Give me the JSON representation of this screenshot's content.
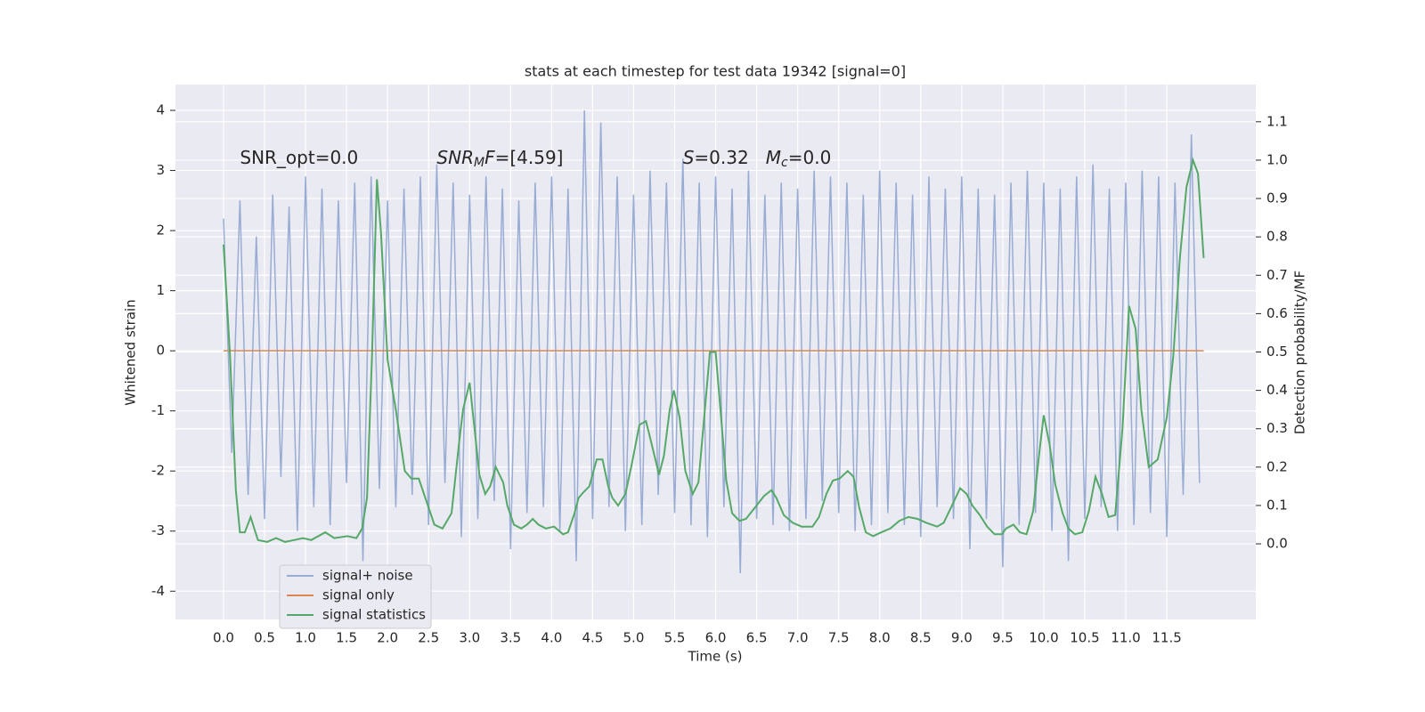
{
  "chart_data": {
    "type": "line",
    "title": "stats at each timestep for test data 19342 [signal=0]",
    "xlabel": "Time (s)",
    "ylabel": "Whitened strain",
    "y2label": "Detection probability/MF",
    "annotations": [
      {
        "parts": [
          {
            "text": "SNR_opt=0.0",
            "italic": false
          }
        ]
      },
      {
        "parts": [
          {
            "text": "SNR",
            "italic": true
          },
          {
            "text": "M",
            "italic": true,
            "sub": true
          },
          {
            "text": "F",
            "italic": true
          },
          {
            "text": "=[4.59]",
            "italic": false
          }
        ]
      },
      {
        "parts": [
          {
            "text": "S",
            "italic": true
          },
          {
            "text": "=0.32   ",
            "italic": false
          },
          {
            "text": "M",
            "italic": true
          },
          {
            "text": "c",
            "italic": true,
            "sub": true
          },
          {
            "text": "=0.0",
            "italic": false
          }
        ]
      }
    ],
    "annotation_x": [
      0.2,
      2.6,
      5.6
    ],
    "annotation_y": [
      3.2,
      3.2,
      3.2
    ],
    "x": [
      0.0,
      0.1,
      0.2,
      0.3,
      0.4,
      0.5,
      0.6,
      0.7,
      0.8,
      0.9,
      1.0,
      1.1,
      1.2,
      1.3,
      1.4,
      1.5,
      1.6,
      1.7,
      1.8,
      1.9,
      2.0,
      2.1,
      2.2,
      2.3,
      2.4,
      2.5,
      2.6,
      2.7,
      2.8,
      2.9,
      3.0,
      3.1,
      3.2,
      3.3,
      3.4,
      3.5,
      3.6,
      3.7,
      3.8,
      3.9,
      4.0,
      4.1,
      4.2,
      4.3,
      4.4,
      4.5,
      4.6,
      4.7,
      4.8,
      4.9,
      5.0,
      5.1,
      5.2,
      5.3,
      5.4,
      5.5,
      5.6,
      5.7,
      5.8,
      5.9,
      6.0,
      6.1,
      6.2,
      6.3,
      6.4,
      6.5,
      6.6,
      6.7,
      6.8,
      6.9,
      7.0,
      7.1,
      7.2,
      7.3,
      7.4,
      7.5,
      7.6,
      7.7,
      7.8,
      7.9,
      8.0,
      8.1,
      8.2,
      8.3,
      8.4,
      8.5,
      8.6,
      8.7,
      8.8,
      8.9,
      9.0,
      9.1,
      9.2,
      9.3,
      9.4,
      9.5,
      9.6,
      9.7,
      9.8,
      9.9,
      10.0,
      10.1,
      10.2,
      10.3,
      10.4,
      10.5,
      10.6,
      10.7,
      10.8,
      10.9,
      11.0,
      11.1,
      11.2,
      11.3,
      11.4,
      11.5,
      11.6,
      11.7,
      11.8,
      11.9
    ],
    "series": [
      {
        "name": "signal+ noise",
        "color": "#99acd3",
        "values": [
          2.2,
          -1.7,
          2.5,
          -2.4,
          1.9,
          -2.8,
          2.6,
          -2.1,
          2.4,
          -3.0,
          2.9,
          -2.6,
          2.7,
          -2.9,
          2.5,
          -2.2,
          2.8,
          -3.5,
          2.9,
          -2.3,
          2.5,
          -2.6,
          2.7,
          -2.4,
          2.9,
          -2.9,
          3.1,
          -2.2,
          2.8,
          -3.1,
          2.6,
          -2.8,
          2.9,
          -2.5,
          2.7,
          -3.3,
          2.5,
          -2.7,
          2.8,
          -2.6,
          2.9,
          -3.0,
          2.7,
          -3.5,
          4.0,
          -2.8,
          3.8,
          -2.6,
          2.9,
          -3.0,
          2.6,
          -2.9,
          3.0,
          -2.4,
          2.8,
          -2.7,
          3.2,
          -2.9,
          2.8,
          -3.1,
          2.9,
          -2.6,
          2.7,
          -3.7,
          3.0,
          -2.8,
          2.6,
          -2.9,
          2.8,
          -3.0,
          2.7,
          -2.8,
          3.0,
          -2.5,
          2.9,
          -2.7,
          2.8,
          -3.0,
          2.6,
          -2.9,
          3.0,
          -2.7,
          2.8,
          -2.9,
          2.6,
          -3.1,
          2.9,
          -2.6,
          2.7,
          -2.8,
          2.9,
          -3.3,
          2.7,
          -2.8,
          2.6,
          -3.6,
          2.8,
          -2.9,
          3.0,
          -2.7,
          2.8,
          -3.0,
          2.7,
          -3.5,
          2.9,
          -2.8,
          3.1,
          -2.6,
          2.7,
          -3.0,
          2.8,
          -2.9,
          3.0,
          -2.7,
          2.9,
          -3.1,
          2.8,
          -2.4,
          3.6,
          -2.2
        ]
      },
      {
        "name": "signal only",
        "color": "#dd8452",
        "x": [
          0.0,
          11.95
        ],
        "values": [
          0,
          0
        ]
      },
      {
        "name": "signal statistics",
        "color": "#55a868",
        "axis": "y2",
        "x": [
          0.0,
          0.08,
          0.15,
          0.2,
          0.26,
          0.33,
          0.42,
          0.53,
          0.64,
          0.75,
          0.86,
          0.97,
          1.07,
          1.24,
          1.35,
          1.51,
          1.62,
          1.69,
          1.75,
          1.81,
          1.87,
          1.92,
          2.0,
          2.1,
          2.21,
          2.29,
          2.38,
          2.46,
          2.57,
          2.67,
          2.78,
          2.87,
          2.92,
          3.0,
          3.06,
          3.12,
          3.19,
          3.25,
          3.32,
          3.41,
          3.46,
          3.54,
          3.63,
          3.7,
          3.77,
          3.84,
          3.93,
          4.03,
          4.14,
          4.2,
          4.28,
          4.33,
          4.39,
          4.46,
          4.55,
          4.62,
          4.69,
          4.74,
          4.81,
          4.9,
          4.98,
          5.07,
          5.15,
          5.22,
          5.31,
          5.37,
          5.44,
          5.49,
          5.56,
          5.63,
          5.72,
          5.79,
          5.86,
          5.93,
          6.0,
          6.05,
          6.13,
          6.2,
          6.29,
          6.37,
          6.48,
          6.59,
          6.68,
          6.74,
          6.83,
          6.94,
          7.05,
          7.18,
          7.26,
          7.35,
          7.43,
          7.51,
          7.61,
          7.68,
          7.75,
          7.83,
          7.92,
          8.02,
          8.13,
          8.24,
          8.35,
          8.46,
          8.57,
          8.7,
          8.78,
          8.87,
          8.98,
          9.06,
          9.13,
          9.22,
          9.31,
          9.4,
          9.49,
          9.54,
          9.63,
          9.71,
          9.79,
          9.87,
          9.95,
          10.0,
          10.07,
          10.14,
          10.23,
          10.3,
          10.38,
          10.47,
          10.55,
          10.63,
          10.71,
          10.79,
          10.87,
          10.96,
          11.04,
          11.12,
          11.19,
          11.28,
          11.39,
          11.5,
          11.58,
          11.66,
          11.74,
          11.82,
          11.88,
          11.95
        ],
        "values": [
          0.78,
          0.49,
          0.14,
          0.03,
          0.03,
          0.07,
          0.01,
          0.005,
          0.015,
          0.005,
          0.01,
          0.015,
          0.01,
          0.03,
          0.015,
          0.02,
          0.015,
          0.04,
          0.12,
          0.49,
          0.95,
          0.81,
          0.48,
          0.35,
          0.19,
          0.17,
          0.17,
          0.12,
          0.05,
          0.04,
          0.08,
          0.26,
          0.35,
          0.42,
          0.3,
          0.18,
          0.13,
          0.15,
          0.2,
          0.16,
          0.1,
          0.05,
          0.04,
          0.05,
          0.065,
          0.05,
          0.04,
          0.045,
          0.025,
          0.03,
          0.08,
          0.12,
          0.135,
          0.15,
          0.22,
          0.22,
          0.15,
          0.12,
          0.1,
          0.13,
          0.21,
          0.31,
          0.32,
          0.26,
          0.18,
          0.23,
          0.35,
          0.4,
          0.33,
          0.19,
          0.13,
          0.16,
          0.33,
          0.5,
          0.5,
          0.37,
          0.165,
          0.08,
          0.06,
          0.065,
          0.095,
          0.125,
          0.14,
          0.12,
          0.075,
          0.055,
          0.045,
          0.045,
          0.07,
          0.13,
          0.165,
          0.17,
          0.19,
          0.175,
          0.095,
          0.03,
          0.02,
          0.03,
          0.04,
          0.06,
          0.07,
          0.065,
          0.055,
          0.045,
          0.055,
          0.095,
          0.145,
          0.13,
          0.1,
          0.075,
          0.045,
          0.025,
          0.025,
          0.04,
          0.05,
          0.03,
          0.025,
          0.085,
          0.245,
          0.335,
          0.26,
          0.155,
          0.08,
          0.04,
          0.025,
          0.03,
          0.085,
          0.175,
          0.13,
          0.07,
          0.075,
          0.3,
          0.62,
          0.56,
          0.35,
          0.2,
          0.22,
          0.33,
          0.49,
          0.745,
          0.93,
          1.0,
          0.965,
          0.745
        ]
      }
    ],
    "xlim": [
      -0.586,
      12.585
    ],
    "xticks": [
      {
        "value": 0,
        "label": "0.0"
      },
      0.5,
      {
        "value": 1,
        "label": "1.0"
      },
      1.5,
      {
        "value": 2,
        "label": "2.0"
      },
      2.5,
      {
        "value": 3,
        "label": "3.0"
      },
      3.5,
      {
        "value": 4,
        "label": "4.0"
      },
      4.5,
      {
        "value": 5,
        "label": "5.0"
      },
      5.5,
      {
        "value": 6,
        "label": "6.0"
      },
      6.5,
      {
        "value": 7,
        "label": "7.0"
      },
      7.5,
      {
        "value": 8,
        "label": "8.0"
      },
      8.5,
      {
        "value": 9,
        "label": "9.0"
      },
      9.5,
      {
        "value": 10,
        "label": "10.0"
      },
      10.5,
      {
        "value": 11,
        "label": "11.0"
      },
      11.5
    ],
    "ylim": [
      -4.47,
      4.43
    ],
    "yticks": [
      -4,
      -3,
      -2,
      -1,
      0,
      1,
      2,
      3,
      4
    ],
    "y2lim": [
      -0.197,
      1.197
    ],
    "y2ticks": [
      {
        "value": 0,
        "label": "0.0"
      },
      0.1,
      0.2,
      0.3,
      0.4,
      0.5,
      0.6,
      0.7,
      0.8,
      0.9,
      {
        "value": 1,
        "label": "1.0"
      },
      1.1
    ],
    "grid": true,
    "legend": "lower left"
  }
}
